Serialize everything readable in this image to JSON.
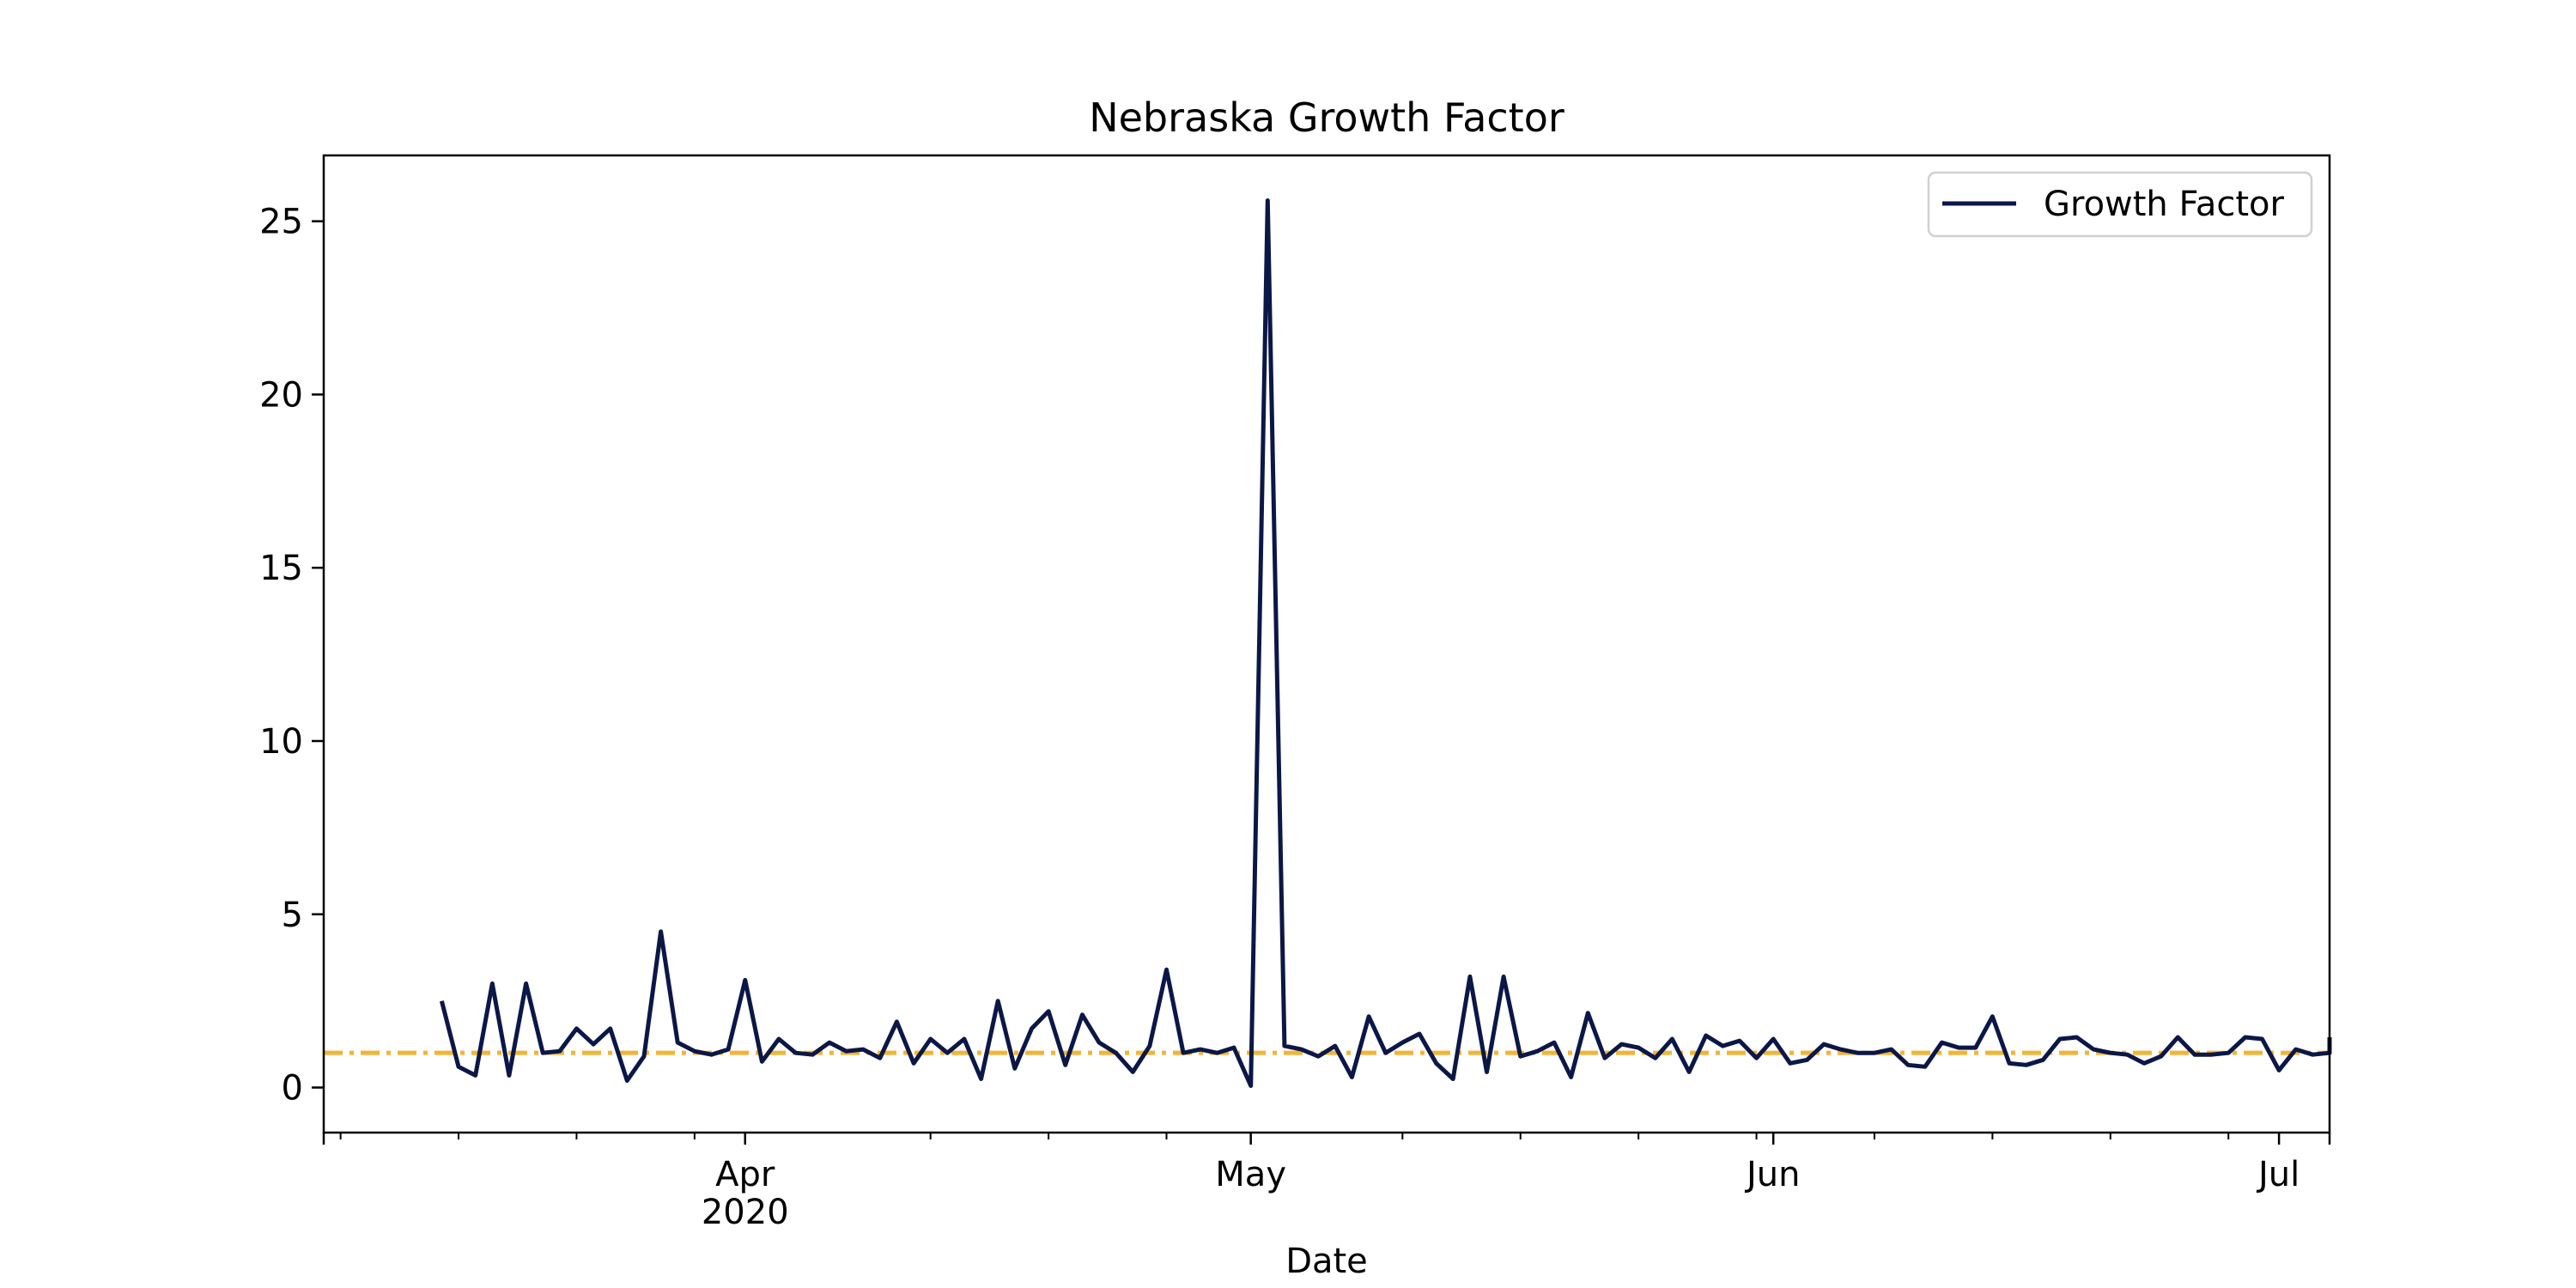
{
  "chart_data": {
    "type": "line",
    "title": "Nebraska Growth Factor",
    "xlabel": "Date",
    "ylabel": "",
    "x_start": "2020-03-14",
    "x_range": [
      "2020-03-07",
      "2020-07-04"
    ],
    "ylim": [
      -1.3,
      26.9
    ],
    "yticks": [
      0,
      5,
      10,
      15,
      20,
      25
    ],
    "xticks": [
      {
        "date": "2020-04-01",
        "label": "Apr",
        "sublabel": "2020"
      },
      {
        "date": "2020-05-01",
        "label": "May",
        "sublabel": ""
      },
      {
        "date": "2020-06-01",
        "label": "Jun",
        "sublabel": ""
      },
      {
        "date": "2020-07-01",
        "label": "Jul",
        "sublabel": ""
      }
    ],
    "minor_xticks": [
      "2020-03-08",
      "2020-03-15",
      "2020-03-22",
      "2020-03-29",
      "2020-04-12",
      "2020-04-19",
      "2020-04-26",
      "2020-05-10",
      "2020-05-17",
      "2020-05-24",
      "2020-05-31",
      "2020-06-07",
      "2020-06-14",
      "2020-06-21",
      "2020-06-28"
    ],
    "grid": false,
    "legend_position": "top-right",
    "reference_line": {
      "y": 1.0,
      "color": "#f5b335",
      "style": "dashdot"
    },
    "series": [
      {
        "name": "Growth Factor",
        "color": "#0b1746",
        "values": [
          2.5,
          0.6,
          0.35,
          3.0,
          0.35,
          3.0,
          1.0,
          1.05,
          1.7,
          1.25,
          1.7,
          0.2,
          0.9,
          4.5,
          1.3,
          1.05,
          0.95,
          1.1,
          3.1,
          0.75,
          1.4,
          1.0,
          0.95,
          1.3,
          1.05,
          1.1,
          0.85,
          1.9,
          0.7,
          1.4,
          1.0,
          1.4,
          0.25,
          2.5,
          0.55,
          1.7,
          2.2,
          0.65,
          2.1,
          1.3,
          1.0,
          0.45,
          1.2,
          3.4,
          1.0,
          1.1,
          1.0,
          1.15,
          0.05,
          25.6,
          1.2,
          1.1,
          0.9,
          1.2,
          0.3,
          2.05,
          1.0,
          1.3,
          1.55,
          0.7,
          0.25,
          3.2,
          0.45,
          3.2,
          0.9,
          1.05,
          1.3,
          0.3,
          2.15,
          0.85,
          1.25,
          1.15,
          0.85,
          1.4,
          0.45,
          1.5,
          1.2,
          1.35,
          0.85,
          1.4,
          0.7,
          0.8,
          1.25,
          1.1,
          1.0,
          1.0,
          1.1,
          0.65,
          0.6,
          1.3,
          1.15,
          1.15,
          2.05,
          0.7,
          0.65,
          0.8,
          1.4,
          1.45,
          1.1,
          1.0,
          0.95,
          0.7,
          0.9,
          1.45,
          0.95,
          0.95,
          1.0,
          1.45,
          1.4,
          0.5,
          1.1,
          0.95,
          1.0,
          1.05,
          1.45
        ]
      }
    ]
  }
}
